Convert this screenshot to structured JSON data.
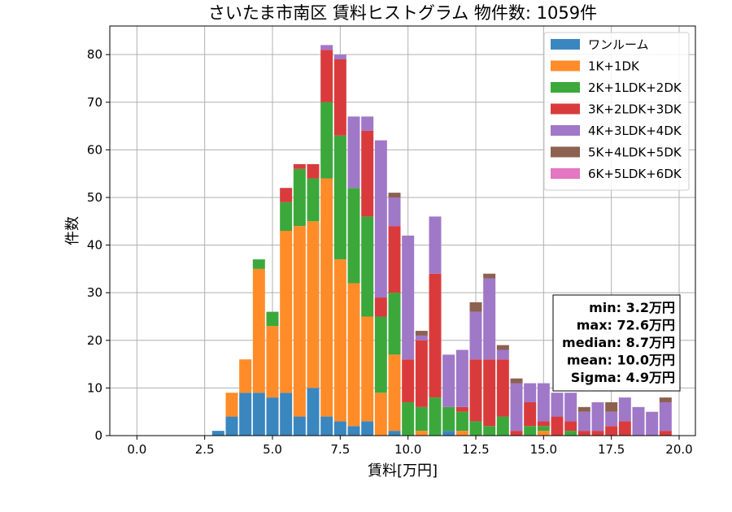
{
  "chart_data": {
    "type": "bar",
    "stacked": true,
    "title": "さいたま市南区 賃料ヒストグラム 物件数: 1059件",
    "xlabel": "賃料[万円]",
    "ylabel": "件数",
    "xlim": [
      -1.0,
      20.6
    ],
    "ylim": [
      0,
      86
    ],
    "xticks": [
      "0.0",
      "2.5",
      "5.0",
      "7.5",
      "10.0",
      "12.5",
      "15.0",
      "17.5",
      "20.0"
    ],
    "yticks": [
      "0",
      "10",
      "20",
      "30",
      "40",
      "50",
      "60",
      "70",
      "80"
    ],
    "grid": true,
    "legend_position": "top-right",
    "bin_centers": [
      3.0,
      3.5,
      4.0,
      4.5,
      5.0,
      5.5,
      6.0,
      6.5,
      7.0,
      7.5,
      8.0,
      8.5,
      9.0,
      9.5,
      10.0,
      10.5,
      11.0,
      11.5,
      12.0,
      12.5,
      13.0,
      13.5,
      14.0,
      14.5,
      15.0,
      15.5,
      16.0,
      16.5,
      17.0,
      17.5,
      18.0,
      18.5,
      19.0,
      19.5
    ],
    "series": [
      {
        "name": "ワンルーム",
        "color": "#3a86bf",
        "values": [
          1,
          4,
          9,
          9,
          8,
          9,
          4,
          10,
          4,
          3,
          2,
          3,
          0,
          1,
          0,
          0,
          0,
          1,
          0,
          0,
          0,
          0,
          0,
          0,
          0,
          0,
          0,
          0,
          0,
          0,
          0,
          0,
          0,
          0
        ]
      },
      {
        "name": "1K+1DK",
        "color": "#ff8c28",
        "values": [
          0,
          5,
          7,
          26,
          15,
          34,
          40,
          35,
          50,
          34,
          30,
          22,
          9,
          16,
          0,
          1,
          0,
          0,
          1,
          0,
          0,
          0,
          0,
          0,
          1,
          0,
          0,
          0,
          0,
          0,
          0,
          0,
          0,
          0
        ]
      },
      {
        "name": "2K+1LDK+2DK",
        "color": "#3ca83c",
        "values": [
          0,
          0,
          0,
          2,
          3,
          6,
          12,
          9,
          16,
          26,
          20,
          21,
          16,
          13,
          7,
          5,
          8,
          5,
          4,
          3,
          2,
          4,
          0,
          2,
          1,
          0,
          1,
          0,
          0,
          0,
          0,
          0,
          0,
          0
        ]
      },
      {
        "name": "3K+2LDK+3DK",
        "color": "#d93b3c",
        "values": [
          0,
          0,
          0,
          0,
          0,
          3,
          1,
          3,
          11,
          16,
          0,
          18,
          4,
          14,
          9,
          14,
          26,
          0,
          1,
          13,
          14,
          12,
          1,
          5,
          1,
          4,
          2,
          1,
          1,
          2,
          3,
          0,
          0,
          1
        ]
      },
      {
        "name": "4K+3LDK+4DK",
        "color": "#a078c8",
        "values": [
          0,
          0,
          0,
          0,
          0,
          0,
          0,
          0,
          1,
          1,
          15,
          3,
          33,
          6,
          26,
          1,
          12,
          11,
          12,
          10,
          17,
          2,
          10,
          4,
          8,
          5,
          6,
          4,
          6,
          3,
          5,
          6,
          5,
          6
        ]
      },
      {
        "name": "5K+4LDK+5DK",
        "color": "#8c614f",
        "values": [
          0,
          0,
          0,
          0,
          0,
          0,
          0,
          0,
          0,
          0,
          0,
          0,
          0,
          1,
          0,
          1,
          0,
          0,
          0,
          2,
          1,
          1,
          1,
          0,
          0,
          0,
          0,
          1,
          0,
          2,
          0,
          0,
          0,
          1
        ]
      },
      {
        "name": "6K+5LDK+6DK",
        "color": "#e377c2",
        "values": [
          0,
          0,
          0,
          0,
          0,
          0,
          0,
          0,
          0,
          0,
          0,
          0,
          0,
          0,
          0,
          0,
          0,
          0,
          0,
          0,
          0,
          0,
          0,
          0,
          0,
          0,
          0,
          0,
          0,
          0,
          0,
          0,
          0,
          0
        ]
      }
    ],
    "stats_box": [
      "min: 3.2万円",
      "max: 72.6万円",
      "median: 8.7万円",
      "mean: 10.0万円",
      "Sigma: 4.9万円"
    ]
  }
}
